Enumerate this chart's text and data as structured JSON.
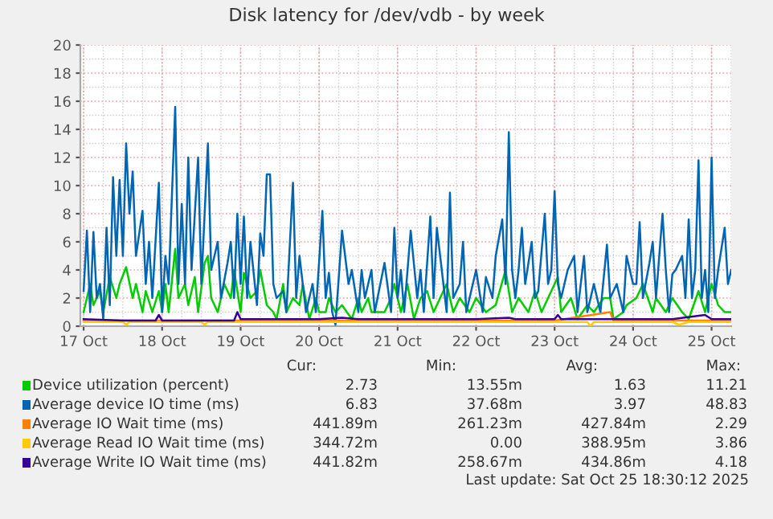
{
  "chart_data": {
    "type": "line",
    "title": "Disk latency for /dev/vdb - by week",
    "xlim": [
      "2025-10-16T23:00",
      "2025-10-25T06:00"
    ],
    "ylim": [
      0,
      20
    ],
    "yticks": [
      0,
      2,
      4,
      6,
      8,
      10,
      12,
      14,
      16,
      18,
      20
    ],
    "xticks": [
      {
        "value": "2025-10-17",
        "label": "17 Oct"
      },
      {
        "value": "2025-10-18",
        "label": "18 Oct"
      },
      {
        "value": "2025-10-19",
        "label": "19 Oct"
      },
      {
        "value": "2025-10-20",
        "label": "20 Oct"
      },
      {
        "value": "2025-10-21",
        "label": "21 Oct"
      },
      {
        "value": "2025-10-22",
        "label": "22 Oct"
      },
      {
        "value": "2025-10-23",
        "label": "23 Oct"
      },
      {
        "value": "2025-10-24",
        "label": "24 Oct"
      },
      {
        "value": "2025-10-25",
        "label": "25 Oct"
      }
    ],
    "grid": true,
    "legend": "bottom",
    "marker": "none",
    "line_style": "solid",
    "series": [
      {
        "name": "Device utilization (percent)",
        "color": "#00cc00",
        "x": [
          "2025-10-17T00:00",
          "2025-10-17T02:00",
          "2025-10-17T03:00",
          "2025-10-17T05:00",
          "2025-10-17T06:00",
          "2025-10-17T08:00",
          "2025-10-17T10:00",
          "2025-10-17T11:00",
          "2025-10-17T13:00",
          "2025-10-17T15:00",
          "2025-10-17T16:00",
          "2025-10-17T18:00",
          "2025-10-17T19:00",
          "2025-10-17T21:00",
          "2025-10-17T23:00",
          "2025-10-18T00:00",
          "2025-10-18T01:00",
          "2025-10-18T02:00",
          "2025-10-18T04:00",
          "2025-10-18T05:00",
          "2025-10-18T07:00",
          "2025-10-18T08:00",
          "2025-10-18T10:00",
          "2025-10-18T11:00",
          "2025-10-18T13:00",
          "2025-10-18T14:00",
          "2025-10-18T15:00",
          "2025-10-18T17:00",
          "2025-10-18T19:00",
          "2025-10-18T21:00",
          "2025-10-18T22:00",
          "2025-10-19T00:00",
          "2025-10-19T01:00",
          "2025-10-19T03:00",
          "2025-10-19T05:00",
          "2025-10-19T06:00",
          "2025-10-19T08:00",
          "2025-10-19T10:00",
          "2025-10-19T11:00",
          "2025-10-19T13:00",
          "2025-10-19T14:00",
          "2025-10-19T16:00",
          "2025-10-19T18:00",
          "2025-10-19T19:00",
          "2025-10-19T21:00",
          "2025-10-19T23:00",
          "2025-10-20T00:00",
          "2025-10-20T02:00",
          "2025-10-20T03:00",
          "2025-10-20T05:00",
          "2025-10-20T07:00",
          "2025-10-20T10:00",
          "2025-10-20T12:00",
          "2025-10-20T13:00",
          "2025-10-20T15:00",
          "2025-10-20T16:00",
          "2025-10-20T20:00",
          "2025-10-20T22:00",
          "2025-10-20T23:00",
          "2025-10-21T01:00",
          "2025-10-21T03:00",
          "2025-10-21T05:00",
          "2025-10-21T07:00",
          "2025-10-21T09:00",
          "2025-10-21T11:00",
          "2025-10-21T13:00",
          "2025-10-21T15:00",
          "2025-10-21T17:00",
          "2025-10-21T19:00",
          "2025-10-21T22:00",
          "2025-10-22T00:00",
          "2025-10-22T03:00",
          "2025-10-22T06:00",
          "2025-10-22T09:00",
          "2025-10-22T11:00",
          "2025-10-22T13:00",
          "2025-10-22T16:00",
          "2025-10-22T18:00",
          "2025-10-22T20:00",
          "2025-10-22T22:00",
          "2025-10-23T01:00",
          "2025-10-23T02:00",
          "2025-10-23T05:00",
          "2025-10-23T07:00",
          "2025-10-23T10:00",
          "2025-10-23T12:00",
          "2025-10-23T15:00",
          "2025-10-23T17:00",
          "2025-10-23T18:00",
          "2025-10-23T21:00",
          "2025-10-23T22:00",
          "2025-10-24T01:00",
          "2025-10-24T03:00",
          "2025-10-24T06:00",
          "2025-10-24T07:00",
          "2025-10-24T10:00",
          "2025-10-24T12:00",
          "2025-10-24T15:00",
          "2025-10-24T17:00",
          "2025-10-24T20:00",
          "2025-10-24T22:00",
          "2025-10-25T00:00",
          "2025-10-25T02:00",
          "2025-10-25T04:00",
          "2025-10-25T06:00"
        ],
        "values": [
          1,
          3,
          1.5,
          2.5,
          1,
          3.5,
          2,
          3,
          4.2,
          2,
          3,
          1,
          2.5,
          1,
          2.5,
          1,
          3,
          1,
          5.5,
          2,
          3,
          1.5,
          3.5,
          1,
          4.5,
          5,
          2,
          1,
          3,
          2,
          4,
          1,
          3.8,
          2,
          2.5,
          4,
          1.5,
          1,
          0.5,
          3,
          1,
          2,
          1.5,
          3,
          0.5,
          2,
          1,
          1,
          2,
          1,
          1.5,
          0.5,
          2,
          1,
          2,
          1,
          1,
          2,
          3,
          1,
          3,
          0.5,
          2,
          2.5,
          1,
          2,
          3,
          1,
          2,
          1,
          2,
          1,
          1.5,
          4,
          1,
          2,
          1,
          2.5,
          1,
          2,
          3.5,
          1,
          2,
          0.5,
          1.5,
          1,
          2,
          2,
          0.5,
          1,
          1.5,
          2,
          3,
          1,
          2,
          1,
          2,
          1,
          0.5,
          2.5,
          1,
          3,
          1.5,
          1,
          1
        ]
      },
      {
        "name": "Average device IO time (ms)",
        "color": "#0066b3",
        "x": [
          "2025-10-17T00:00",
          "2025-10-17T01:00",
          "2025-10-17T02:00",
          "2025-10-17T03:00",
          "2025-10-17T04:00",
          "2025-10-17T05:00",
          "2025-10-17T06:00",
          "2025-10-17T07:00",
          "2025-10-17T08:00",
          "2025-10-17T09:00",
          "2025-10-17T10:00",
          "2025-10-17T11:00",
          "2025-10-17T12:00",
          "2025-10-17T13:00",
          "2025-10-17T14:00",
          "2025-10-17T15:00",
          "2025-10-17T16:00",
          "2025-10-17T18:00",
          "2025-10-17T19:00",
          "2025-10-17T20:00",
          "2025-10-17T21:00",
          "2025-10-17T23:00",
          "2025-10-18T00:00",
          "2025-10-18T01:00",
          "2025-10-18T02:00",
          "2025-10-18T04:00",
          "2025-10-18T05:00",
          "2025-10-18T06:00",
          "2025-10-18T07:00",
          "2025-10-18T08:00",
          "2025-10-18T09:00",
          "2025-10-18T11:00",
          "2025-10-18T12:00",
          "2025-10-18T13:00",
          "2025-10-18T14:00",
          "2025-10-18T15:00",
          "2025-10-18T17:00",
          "2025-10-18T18:00",
          "2025-10-18T20:00",
          "2025-10-18T21:00",
          "2025-10-18T22:00",
          "2025-10-18T23:00",
          "2025-10-19T00:00",
          "2025-10-19T01:00",
          "2025-10-19T02:00",
          "2025-10-19T03:00",
          "2025-10-19T05:00",
          "2025-10-19T06:00",
          "2025-10-19T07:00",
          "2025-10-19T08:00",
          "2025-10-19T09:00",
          "2025-10-19T10:00",
          "2025-10-19T11:00",
          "2025-10-19T13:00",
          "2025-10-19T14:00",
          "2025-10-19T16:00",
          "2025-10-19T17:00",
          "2025-10-19T18:00",
          "2025-10-19T20:00",
          "2025-10-19T22:00",
          "2025-10-19T23:00",
          "2025-10-20T01:00",
          "2025-10-20T02:00",
          "2025-10-20T03:00",
          "2025-10-20T04:00",
          "2025-10-20T05:00",
          "2025-10-20T07:00",
          "2025-10-20T09:00",
          "2025-10-20T10:00",
          "2025-10-20T12:00",
          "2025-10-20T13:00",
          "2025-10-20T14:00",
          "2025-10-20T16:00",
          "2025-10-20T17:00",
          "2025-10-20T20:00",
          "2025-10-20T22:00",
          "2025-10-20T23:00",
          "2025-10-21T00:00",
          "2025-10-21T01:00",
          "2025-10-21T02:00",
          "2025-10-21T04:00",
          "2025-10-21T06:00",
          "2025-10-21T07:00",
          "2025-10-21T08:00",
          "2025-10-21T10:00",
          "2025-10-21T11:00",
          "2025-10-21T12:00",
          "2025-10-21T14:00",
          "2025-10-21T15:00",
          "2025-10-21T16:00",
          "2025-10-21T17:00",
          "2025-10-21T19:00",
          "2025-10-21T20:00",
          "2025-10-21T21:00",
          "2025-10-21T22:00",
          "2025-10-22T00:00",
          "2025-10-22T02:00",
          "2025-10-22T03:00",
          "2025-10-22T05:00",
          "2025-10-22T06:00",
          "2025-10-22T08:00",
          "2025-10-22T09:00",
          "2025-10-22T10:00",
          "2025-10-22T11:00",
          "2025-10-22T12:00",
          "2025-10-22T13:00",
          "2025-10-22T14:00",
          "2025-10-22T15:00",
          "2025-10-22T17:00",
          "2025-10-22T18:00",
          "2025-10-22T19:00",
          "2025-10-22T21:00",
          "2025-10-22T22:00",
          "2025-10-22T23:00",
          "2025-10-23T00:00",
          "2025-10-23T01:00",
          "2025-10-23T02:00",
          "2025-10-23T04:00",
          "2025-10-23T06:00",
          "2025-10-23T07:00",
          "2025-10-23T09:00",
          "2025-10-23T10:00",
          "2025-10-23T12:00",
          "2025-10-23T14:00",
          "2025-10-23T16:00",
          "2025-10-23T17:00",
          "2025-10-23T19:00",
          "2025-10-23T21:00",
          "2025-10-23T22:00",
          "2025-10-24T00:00",
          "2025-10-24T01:00",
          "2025-10-24T02:00",
          "2025-10-24T03:00",
          "2025-10-24T05:00",
          "2025-10-24T06:00",
          "2025-10-24T07:00",
          "2025-10-24T08:00",
          "2025-10-24T09:00",
          "2025-10-24T10:00",
          "2025-10-24T11:00",
          "2025-10-24T12:00",
          "2025-10-24T13:00",
          "2025-10-24T15:00",
          "2025-10-24T16:00",
          "2025-10-24T17:00",
          "2025-10-24T18:00",
          "2025-10-24T19:00",
          "2025-10-24T20:00",
          "2025-10-24T21:00",
          "2025-10-24T22:00",
          "2025-10-24T23:00",
          "2025-10-25T00:00",
          "2025-10-25T01:00",
          "2025-10-25T02:00",
          "2025-10-25T04:00",
          "2025-10-25T05:00",
          "2025-10-25T06:00"
        ],
        "values": [
          2.5,
          6.8,
          1,
          6.7,
          2,
          3,
          0.5,
          7,
          1.5,
          10.6,
          5,
          10.4,
          5,
          13,
          8,
          11,
          5,
          8.2,
          3,
          6,
          2,
          10.2,
          1,
          5,
          3,
          15.6,
          3,
          8.7,
          3,
          12,
          4,
          12,
          3,
          8,
          13,
          4,
          6,
          2,
          4.5,
          6,
          2,
          8,
          3,
          7.8,
          2,
          6,
          1.5,
          6.6,
          5,
          10.8,
          10.8,
          3,
          2,
          2.5,
          1,
          10.2,
          2,
          5,
          1,
          3,
          1,
          8.2,
          2,
          3.8,
          1,
          0.1,
          6.8,
          3,
          4,
          1,
          4,
          2,
          4,
          1,
          4.5,
          1,
          7,
          2,
          4,
          1,
          6.8,
          2,
          4,
          1,
          7.8,
          2,
          7,
          3,
          1,
          9.5,
          2,
          3,
          6,
          1,
          2,
          4,
          1,
          3.5,
          2,
          5,
          7.6,
          3,
          13.8,
          4,
          2,
          4,
          7,
          3,
          6,
          2,
          2.5,
          8,
          3,
          4,
          9.6,
          3,
          2,
          4,
          5,
          1,
          5,
          1,
          3,
          1,
          5.8,
          2,
          3,
          1,
          5,
          3,
          3,
          7.4,
          2,
          4.5,
          6,
          2,
          5,
          8,
          4,
          1,
          3.7,
          4,
          5,
          2,
          7.6,
          2,
          4,
          11.8,
          2,
          4,
          1,
          12,
          2,
          4,
          7,
          3,
          4
        ]
      },
      {
        "name": "Average IO Wait time (ms)",
        "color": "#ff8000",
        "x": [
          "2025-10-17T00:00",
          "2025-10-19T00:00",
          "2025-10-21T00:00",
          "2025-10-23T00:00",
          "2025-10-23T17:00",
          "2025-10-23T18:00",
          "2025-10-25T06:00"
        ],
        "values": [
          0.4,
          0.4,
          0.4,
          0.4,
          1.0,
          0.4,
          0.4
        ]
      },
      {
        "name": "Average Read IO Wait time (ms)",
        "color": "#ffcc00",
        "x": [
          "2025-10-17T00:00",
          "2025-10-17T12:00",
          "2025-10-17T13:00",
          "2025-10-17T14:00",
          "2025-10-18T00:00",
          "2025-10-18T12:00",
          "2025-10-18T13:00",
          "2025-10-18T14:00",
          "2025-10-19T00:00",
          "2025-10-19T12:00",
          "2025-10-20T00:00",
          "2025-10-20T12:00",
          "2025-10-21T00:00",
          "2025-10-22T00:00",
          "2025-10-22T12:00",
          "2025-10-23T00:00",
          "2025-10-23T10:00",
          "2025-10-23T11:00",
          "2025-10-23T12:00",
          "2025-10-24T00:00",
          "2025-10-24T12:00",
          "2025-10-24T14:00",
          "2025-10-24T17:00",
          "2025-10-25T00:00",
          "2025-10-25T06:00"
        ],
        "values": [
          0.3,
          0.3,
          0.1,
          0.3,
          0.3,
          0.3,
          0.1,
          0.3,
          0.3,
          0.3,
          0.3,
          0.3,
          0.3,
          0.3,
          0.3,
          0.3,
          0.3,
          0.0,
          0.3,
          0.3,
          0.3,
          0.1,
          0.3,
          0.3,
          0.3
        ]
      },
      {
        "name": "Average Write IO Wait time (ms)",
        "color": "#330099",
        "x": [
          "2025-10-17T00:00",
          "2025-10-17T12:00",
          "2025-10-17T22:00",
          "2025-10-17T23:00",
          "2025-10-18T00:00",
          "2025-10-18T12:00",
          "2025-10-18T22:00",
          "2025-10-18T23:00",
          "2025-10-19T00:00",
          "2025-10-19T12:00",
          "2025-10-20T00:00",
          "2025-10-20T07:00",
          "2025-10-20T12:00",
          "2025-10-21T00:00",
          "2025-10-21T12:00",
          "2025-10-22T00:00",
          "2025-10-22T10:00",
          "2025-10-22T12:00",
          "2025-10-23T00:00",
          "2025-10-23T01:00",
          "2025-10-23T02:00",
          "2025-10-23T12:00",
          "2025-10-24T00:00",
          "2025-10-24T12:00",
          "2025-10-24T22:00",
          "2025-10-25T00:00",
          "2025-10-25T06:00"
        ],
        "values": [
          0.5,
          0.4,
          0.4,
          0.8,
          0.4,
          0.4,
          0.4,
          1.0,
          0.5,
          0.5,
          0.5,
          0.6,
          0.5,
          0.5,
          0.5,
          0.5,
          0.6,
          0.5,
          0.5,
          0.8,
          0.5,
          0.5,
          0.5,
          0.5,
          0.8,
          0.5,
          0.5
        ]
      }
    ],
    "annotations": [
      "Cur:",
      "Min:",
      "Avg:",
      "Max:",
      "2.73",
      "13.55m",
      "1.63",
      "11.21",
      "6.83",
      "37.68m",
      "3.97",
      "48.83",
      "441.89m",
      "261.23m",
      "427.84m",
      "2.29",
      "344.72m",
      "0.00",
      "388.95m",
      "3.86",
      "441.82m",
      "258.67m",
      "434.86m",
      "4.18",
      "Last update: Sat Oct 25 18:30:12 2025"
    ]
  }
}
